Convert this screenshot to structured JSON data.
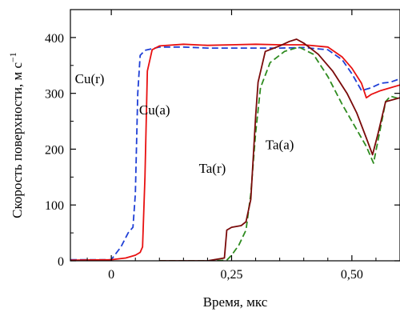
{
  "chart_data": {
    "type": "line",
    "xlabel": "Время, мкс",
    "ylabel": "Скорость поверхности, м с",
    "ylabel_exponent": "−1",
    "xlim": [
      -0.085,
      0.6
    ],
    "ylim": [
      0,
      450
    ],
    "xticks": [
      {
        "value": 0,
        "label": "0"
      },
      {
        "value": 0.25,
        "label": "0,25"
      },
      {
        "value": 0.5,
        "label": "0,50"
      }
    ],
    "yticks": [
      {
        "value": 0,
        "label": "0"
      },
      {
        "value": 100,
        "label": "100"
      },
      {
        "value": 200,
        "label": "200"
      },
      {
        "value": 300,
        "label": "300"
      },
      {
        "value": 400,
        "label": "400"
      }
    ],
    "grid": false,
    "series": [
      {
        "name": "Cu(r)",
        "color": "#1f3fd6",
        "dash": "dashed",
        "points": [
          [
            -0.085,
            2
          ],
          [
            0,
            2
          ],
          [
            0.02,
            25
          ],
          [
            0.035,
            50
          ],
          [
            0.045,
            60
          ],
          [
            0.05,
            120
          ],
          [
            0.055,
            300
          ],
          [
            0.06,
            368
          ],
          [
            0.07,
            377
          ],
          [
            0.1,
            383
          ],
          [
            0.15,
            383
          ],
          [
            0.2,
            381
          ],
          [
            0.25,
            381
          ],
          [
            0.3,
            381
          ],
          [
            0.35,
            381
          ],
          [
            0.4,
            382
          ],
          [
            0.45,
            378
          ],
          [
            0.48,
            360
          ],
          [
            0.5,
            335
          ],
          [
            0.52,
            305
          ],
          [
            0.54,
            310
          ],
          [
            0.56,
            318
          ],
          [
            0.58,
            320
          ],
          [
            0.6,
            326
          ]
        ]
      },
      {
        "name": "Cu(a)",
        "color": "#e81010",
        "dash": "solid",
        "points": [
          [
            -0.085,
            1
          ],
          [
            0,
            2
          ],
          [
            0.03,
            5
          ],
          [
            0.05,
            10
          ],
          [
            0.06,
            15
          ],
          [
            0.065,
            25
          ],
          [
            0.07,
            150
          ],
          [
            0.075,
            340
          ],
          [
            0.085,
            378
          ],
          [
            0.1,
            385
          ],
          [
            0.15,
            388
          ],
          [
            0.2,
            386
          ],
          [
            0.25,
            387
          ],
          [
            0.3,
            388
          ],
          [
            0.35,
            387
          ],
          [
            0.4,
            387
          ],
          [
            0.45,
            383
          ],
          [
            0.48,
            365
          ],
          [
            0.5,
            345
          ],
          [
            0.52,
            318
          ],
          [
            0.53,
            292
          ],
          [
            0.54,
            298
          ],
          [
            0.56,
            305
          ],
          [
            0.6,
            315
          ]
        ]
      },
      {
        "name": "Ta(r)",
        "color": "#2e8b1f",
        "dash": "dashed",
        "points": [
          [
            0.1,
            0
          ],
          [
            0.2,
            0
          ],
          [
            0.24,
            1
          ],
          [
            0.25,
            10
          ],
          [
            0.265,
            28
          ],
          [
            0.28,
            55
          ],
          [
            0.29,
            120
          ],
          [
            0.3,
            230
          ],
          [
            0.31,
            310
          ],
          [
            0.33,
            355
          ],
          [
            0.36,
            375
          ],
          [
            0.39,
            383
          ],
          [
            0.42,
            370
          ],
          [
            0.45,
            330
          ],
          [
            0.48,
            280
          ],
          [
            0.5,
            250
          ],
          [
            0.53,
            205
          ],
          [
            0.545,
            175
          ],
          [
            0.56,
            240
          ],
          [
            0.57,
            285
          ],
          [
            0.58,
            295
          ],
          [
            0.6,
            290
          ]
        ]
      },
      {
        "name": "Ta(a)",
        "color": "#7a0a0a",
        "dash": "solid",
        "points": [
          [
            0.1,
            0
          ],
          [
            0.2,
            0
          ],
          [
            0.235,
            5
          ],
          [
            0.24,
            55
          ],
          [
            0.25,
            60
          ],
          [
            0.27,
            63
          ],
          [
            0.28,
            70
          ],
          [
            0.29,
            110
          ],
          [
            0.3,
            260
          ],
          [
            0.305,
            320
          ],
          [
            0.32,
            375
          ],
          [
            0.35,
            385
          ],
          [
            0.37,
            393
          ],
          [
            0.385,
            397
          ],
          [
            0.4,
            390
          ],
          [
            0.43,
            370
          ],
          [
            0.46,
            340
          ],
          [
            0.49,
            300
          ],
          [
            0.51,
            265
          ],
          [
            0.53,
            220
          ],
          [
            0.543,
            190
          ],
          [
            0.555,
            230
          ],
          [
            0.57,
            285
          ],
          [
            0.6,
            292
          ]
        ]
      }
    ],
    "annotations": [
      {
        "text": "Cu(r)",
        "x": -0.045,
        "y": 318
      },
      {
        "text": "Cu(a)",
        "x": 0.09,
        "y": 262
      },
      {
        "text": "Ta(r)",
        "x": 0.21,
        "y": 158
      },
      {
        "text": "Ta(a)",
        "x": 0.35,
        "y": 200
      }
    ]
  }
}
